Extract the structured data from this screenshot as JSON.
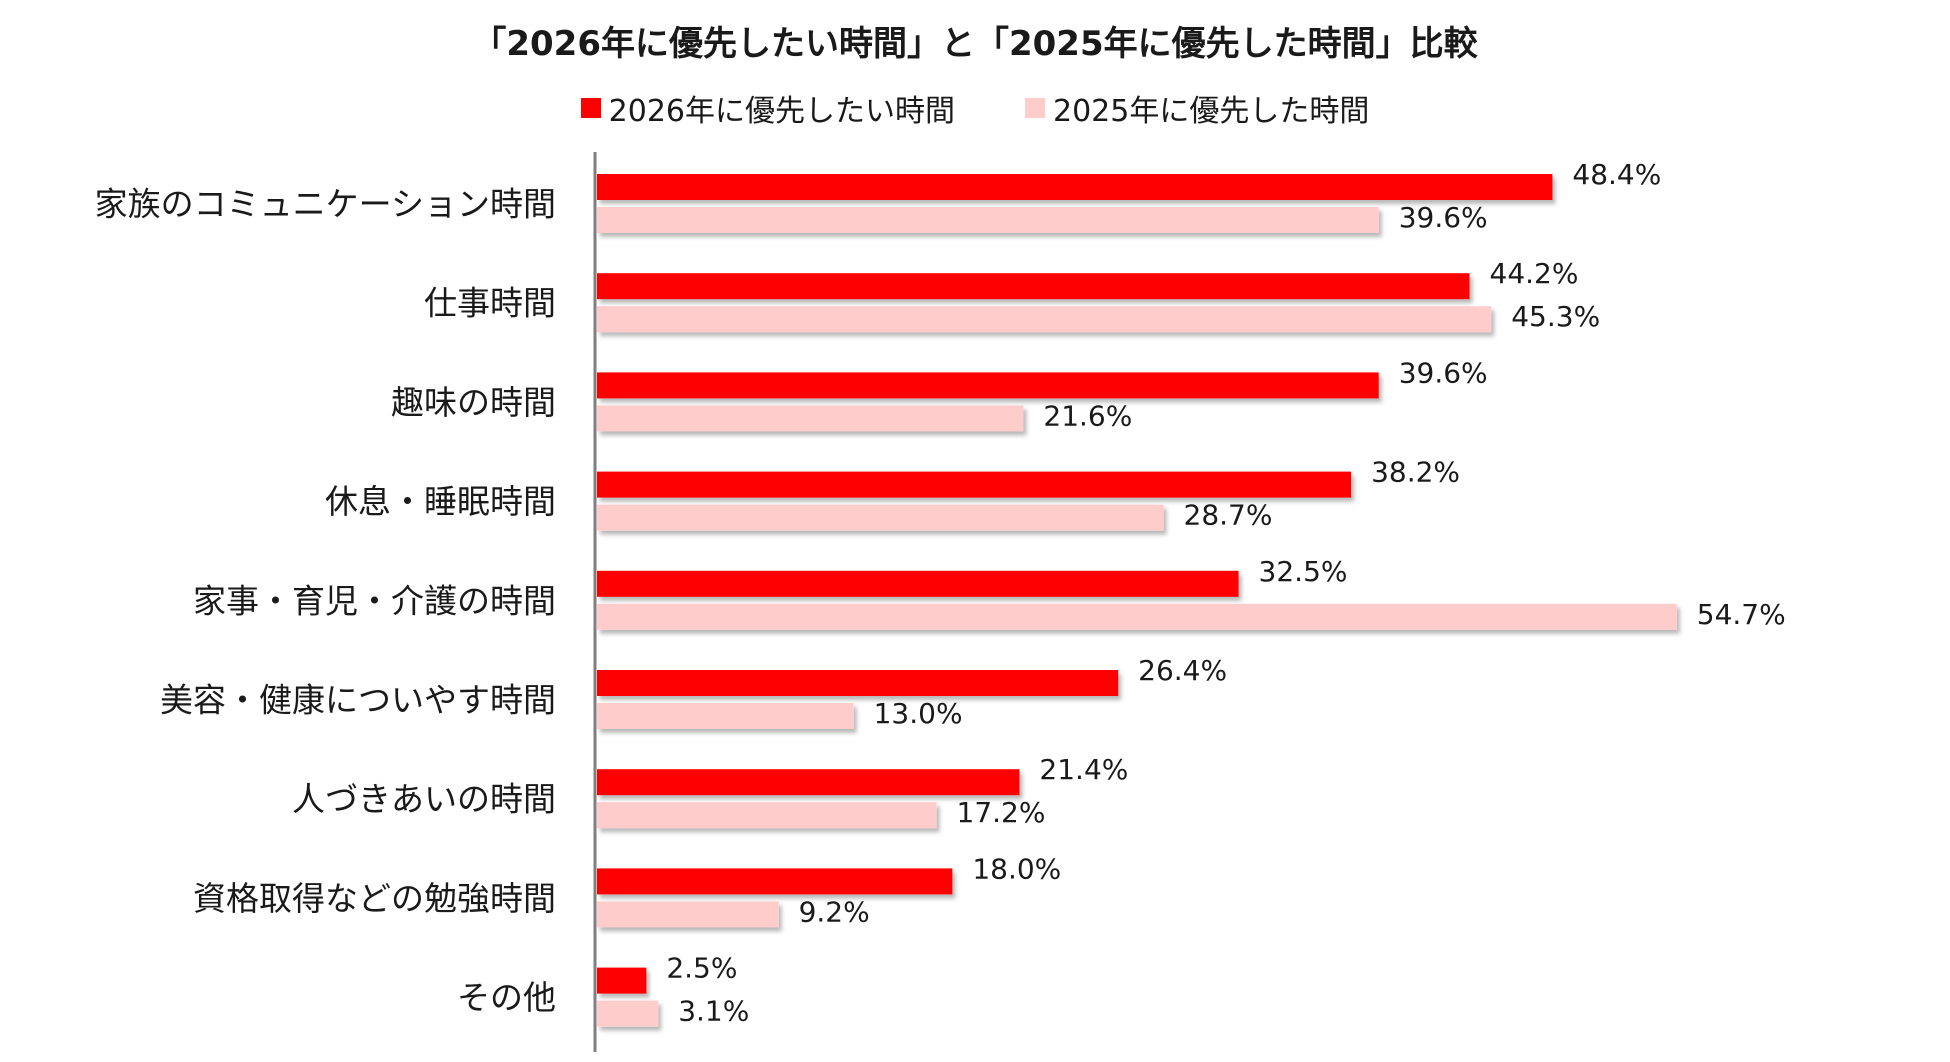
{
  "chart_data": {
    "type": "bar",
    "orientation": "horizontal",
    "title": "「2026年に優先したい時間」と「2025年に優先した時間」比較",
    "legend_position": "top",
    "grid": false,
    "xlim": [
      0,
      60
    ],
    "categories": [
      "家族のコミュニケーション時間",
      "仕事時間",
      "趣味の時間",
      "休息・睡眠時間",
      "家事・育児・介護の時間",
      "美容・健康についやす時間",
      "人づきあいの時間",
      "資格取得などの勉強時間",
      "その他"
    ],
    "series": [
      {
        "name": "2026年に優先したい時間",
        "color": "#ff0000",
        "values": [
          48.4,
          44.2,
          39.6,
          38.2,
          32.5,
          26.4,
          21.4,
          18.0,
          2.5
        ],
        "labels": [
          "48.4%",
          "44.2%",
          "39.6%",
          "38.2%",
          "32.5%",
          "26.4%",
          "21.4%",
          "18.0%",
          "2.5%"
        ]
      },
      {
        "name": "2025年に優先した時間",
        "color": "#ffcccc",
        "values": [
          39.6,
          45.3,
          21.6,
          28.7,
          54.7,
          13.0,
          17.2,
          9.2,
          3.1
        ],
        "labels": [
          "39.6%",
          "45.3%",
          "21.6%",
          "28.7%",
          "54.7%",
          "13.0%",
          "17.2%",
          "9.2%",
          "3.1%"
        ]
      }
    ]
  }
}
